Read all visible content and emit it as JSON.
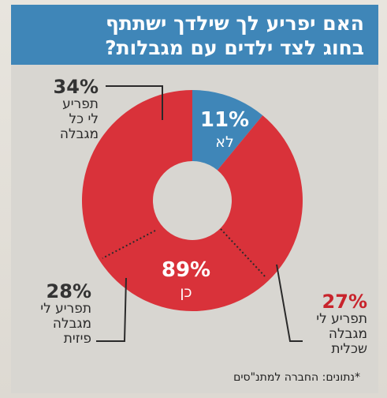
{
  "title": {
    "line1": "האם יפריע לך שילדך ישתתף",
    "line2": "בחוג לצד ילדים עם מגבלות?"
  },
  "source": "*נתונים: החברה למתנ\"סים",
  "colors": {
    "yes": "#d9323a",
    "no": "#3f86b8",
    "title_bg": "#3f86b8",
    "pct_red": "#c8242c",
    "pct_dark": "#333333"
  },
  "chart_data": {
    "type": "pie",
    "style": "donut",
    "title": "האם יפריע לך שילדך ישתתף בחוג לצד ילדים עם מגבלות?",
    "slices": [
      {
        "label": "לא",
        "value": 11,
        "display": "11%",
        "color": "#3f86b8"
      },
      {
        "label": "כן",
        "value": 89,
        "display": "89%",
        "color": "#d9323a"
      }
    ],
    "breakdown_of_yes": [
      {
        "label_lines": [
          "תפריע",
          "לי כל",
          "מגבלה"
        ],
        "value": 34,
        "display": "34%"
      },
      {
        "label_lines": [
          "תפריע לי",
          "מגבלה",
          "שכלית"
        ],
        "value": 27,
        "display": "27%"
      },
      {
        "label_lines": [
          "תפריע לי",
          "מגבלה",
          "פיזית"
        ],
        "value": 28,
        "display": "28%"
      }
    ]
  }
}
